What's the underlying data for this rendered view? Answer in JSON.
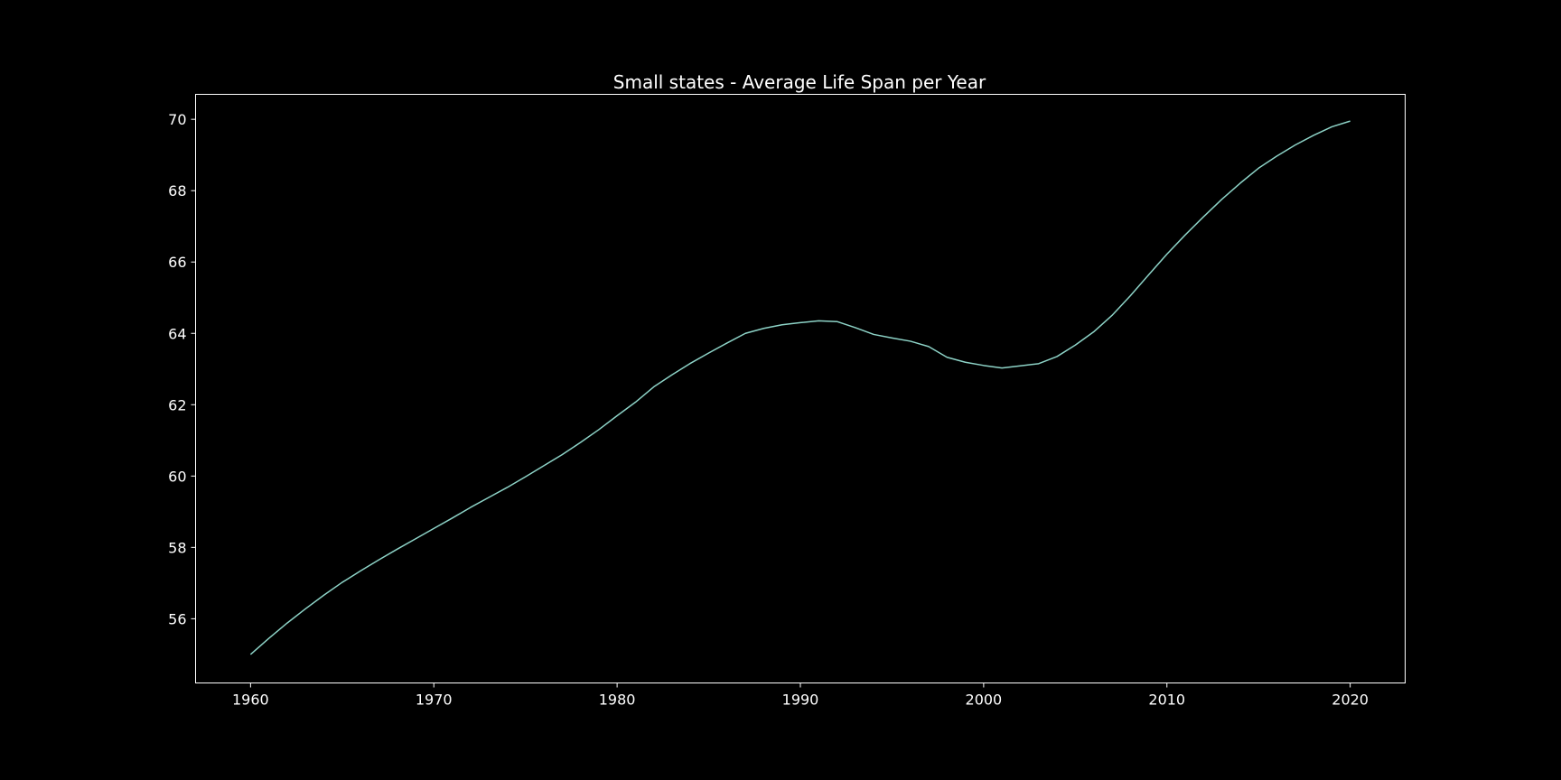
{
  "chart_data": {
    "type": "line",
    "title": "Small states - Average Life Span per Year",
    "xlabel": "",
    "ylabel": "",
    "xlim": [
      1957,
      2023
    ],
    "ylim": [
      54.2,
      70.7
    ],
    "xticks": [
      1960,
      1970,
      1980,
      1990,
      2000,
      2010,
      2020
    ],
    "yticks": [
      56,
      58,
      60,
      62,
      64,
      66,
      68,
      70
    ],
    "grid": false,
    "legend": "none",
    "series": [
      {
        "color": "#8dd3c7",
        "x": [
          1960,
          1961,
          1962,
          1963,
          1964,
          1965,
          1966,
          1967,
          1968,
          1969,
          1970,
          1971,
          1972,
          1973,
          1974,
          1975,
          1976,
          1977,
          1978,
          1979,
          1980,
          1981,
          1982,
          1983,
          1984,
          1985,
          1986,
          1987,
          1988,
          1989,
          1990,
          1991,
          1992,
          1993,
          1994,
          1995,
          1996,
          1997,
          1998,
          1999,
          2000,
          2001,
          2002,
          2003,
          2004,
          2005,
          2006,
          2007,
          2008,
          2009,
          2010,
          2011,
          2012,
          2013,
          2014,
          2015,
          2016,
          2017,
          2018,
          2019,
          2020
        ],
        "y": [
          55.0,
          55.45,
          55.88,
          56.28,
          56.66,
          57.02,
          57.34,
          57.65,
          57.95,
          58.24,
          58.53,
          58.82,
          59.12,
          59.4,
          59.68,
          59.98,
          60.29,
          60.6,
          60.94,
          61.3,
          61.69,
          62.07,
          62.5,
          62.84,
          63.16,
          63.45,
          63.73,
          64.0,
          64.14,
          64.24,
          64.3,
          64.35,
          64.33,
          64.16,
          63.97,
          63.87,
          63.78,
          63.63,
          63.33,
          63.19,
          63.1,
          63.03,
          63.09,
          63.15,
          63.35,
          63.67,
          64.04,
          64.5,
          65.05,
          65.64,
          66.22,
          66.76,
          67.27,
          67.76,
          68.21,
          68.63,
          68.97,
          69.28,
          69.55,
          69.79,
          69.95
        ]
      }
    ]
  },
  "style": {
    "background": "#000000",
    "axes_color": "#ffffff",
    "text_color": "#ffffff"
  }
}
